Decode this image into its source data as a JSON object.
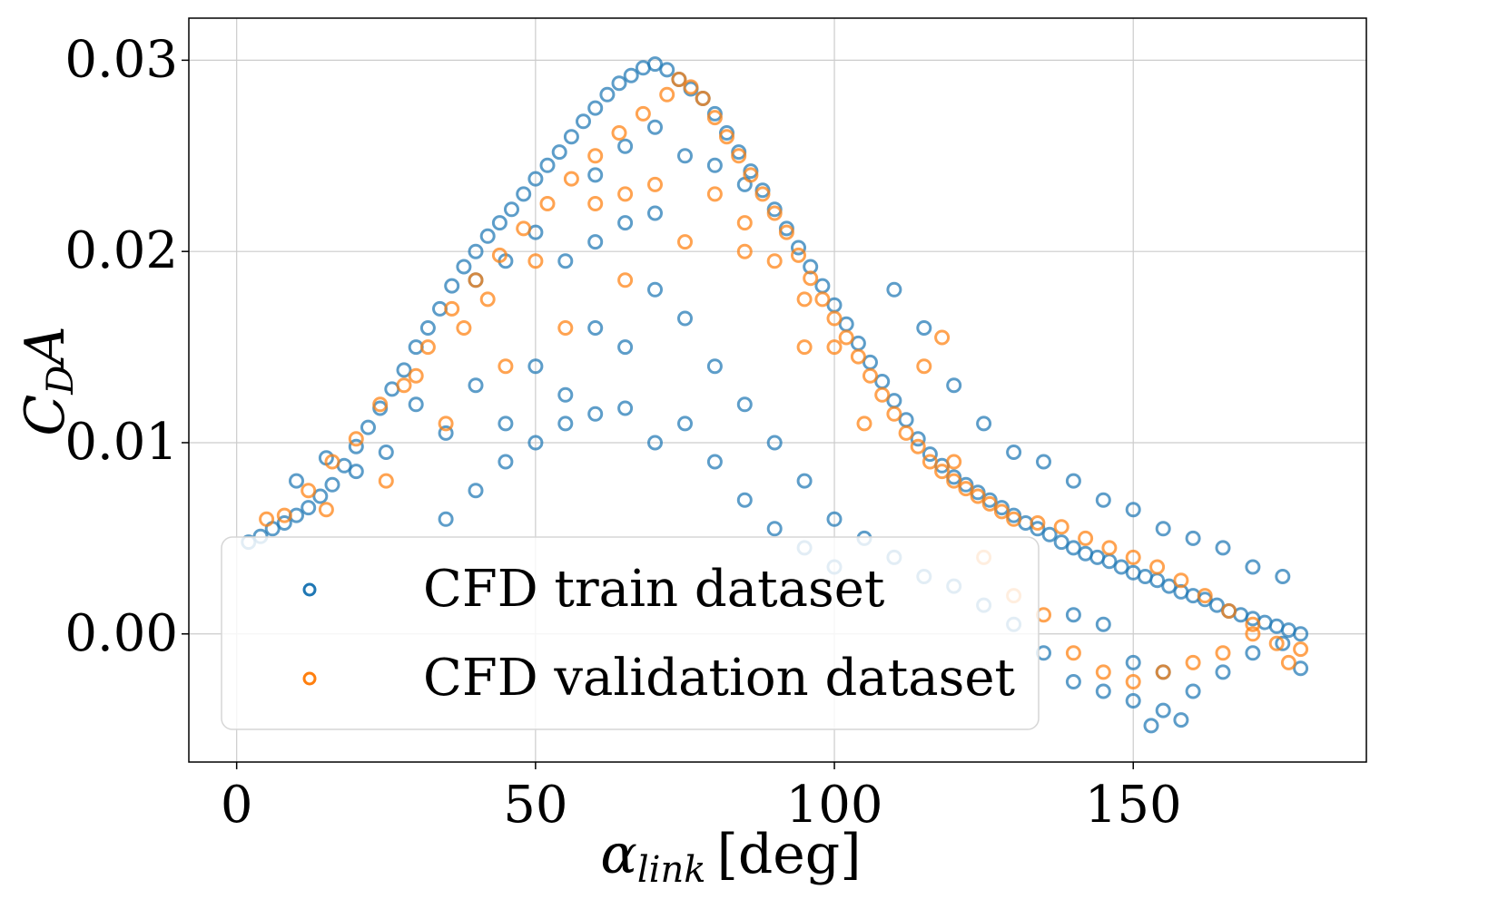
{
  "chart_data": {
    "type": "scatter",
    "xlabel": "αlink [deg]",
    "xlabel_main": "α",
    "xlabel_sub": "link",
    "xlabel_unit": "[deg]",
    "ylabel": "CDA",
    "ylabel_main": "C",
    "ylabel_sub": "D",
    "ylabel_tail": "A",
    "xlim": [
      -8,
      189
    ],
    "ylim": [
      -0.0067,
      0.0322
    ],
    "xticks": [
      0,
      50,
      100,
      150
    ],
    "xtick_labels": [
      "0",
      "50",
      "100",
      "150"
    ],
    "yticks": [
      0.0,
      0.01,
      0.02,
      0.03
    ],
    "ytick_labels": [
      "0.00",
      "0.01",
      "0.02",
      "0.03"
    ],
    "grid": true,
    "legend_position": "lower-left",
    "colors": {
      "train": "#1f77b4",
      "validation": "#ff7f0e"
    },
    "series": [
      {
        "name": "CFD train dataset",
        "color": "#1f77b4",
        "marker": "hollow-circle",
        "points": [
          [
            2,
            0.0048
          ],
          [
            4,
            0.0051
          ],
          [
            6,
            0.0055
          ],
          [
            8,
            0.0058
          ],
          [
            10,
            0.0062
          ],
          [
            12,
            0.0066
          ],
          [
            14,
            0.0072
          ],
          [
            16,
            0.0078
          ],
          [
            18,
            0.0088
          ],
          [
            20,
            0.0098
          ],
          [
            22,
            0.0108
          ],
          [
            24,
            0.0118
          ],
          [
            26,
            0.0128
          ],
          [
            28,
            0.0138
          ],
          [
            30,
            0.015
          ],
          [
            32,
            0.016
          ],
          [
            34,
            0.017
          ],
          [
            36,
            0.0182
          ],
          [
            38,
            0.0192
          ],
          [
            40,
            0.02
          ],
          [
            42,
            0.0208
          ],
          [
            44,
            0.0215
          ],
          [
            46,
            0.0222
          ],
          [
            48,
            0.023
          ],
          [
            50,
            0.0238
          ],
          [
            52,
            0.0245
          ],
          [
            54,
            0.0252
          ],
          [
            56,
            0.026
          ],
          [
            58,
            0.0268
          ],
          [
            60,
            0.0275
          ],
          [
            62,
            0.0282
          ],
          [
            64,
            0.0288
          ],
          [
            66,
            0.0292
          ],
          [
            68,
            0.0296
          ],
          [
            70,
            0.0298
          ],
          [
            72,
            0.0295
          ],
          [
            74,
            0.029
          ],
          [
            76,
            0.0285
          ],
          [
            78,
            0.028
          ],
          [
            80,
            0.0272
          ],
          [
            82,
            0.0262
          ],
          [
            84,
            0.0252
          ],
          [
            86,
            0.0242
          ],
          [
            88,
            0.0232
          ],
          [
            90,
            0.0222
          ],
          [
            92,
            0.0212
          ],
          [
            94,
            0.0202
          ],
          [
            96,
            0.0192
          ],
          [
            98,
            0.0182
          ],
          [
            100,
            0.0172
          ],
          [
            102,
            0.0162
          ],
          [
            104,
            0.0152
          ],
          [
            106,
            0.0142
          ],
          [
            108,
            0.0132
          ],
          [
            110,
            0.0122
          ],
          [
            112,
            0.0112
          ],
          [
            114,
            0.0102
          ],
          [
            116,
            0.0094
          ],
          [
            118,
            0.0088
          ],
          [
            120,
            0.0082
          ],
          [
            122,
            0.0078
          ],
          [
            124,
            0.0074
          ],
          [
            126,
            0.007
          ],
          [
            128,
            0.0066
          ],
          [
            130,
            0.0062
          ],
          [
            132,
            0.0058
          ],
          [
            134,
            0.0055
          ],
          [
            136,
            0.0052
          ],
          [
            138,
            0.0048
          ],
          [
            140,
            0.0045
          ],
          [
            142,
            0.0042
          ],
          [
            144,
            0.004
          ],
          [
            146,
            0.0038
          ],
          [
            148,
            0.0035
          ],
          [
            150,
            0.0032
          ],
          [
            152,
            0.003
          ],
          [
            154,
            0.0028
          ],
          [
            156,
            0.0025
          ],
          [
            158,
            0.0022
          ],
          [
            160,
            0.002
          ],
          [
            162,
            0.0018
          ],
          [
            164,
            0.0015
          ],
          [
            166,
            0.0012
          ],
          [
            168,
            0.001
          ],
          [
            170,
            0.0008
          ],
          [
            172,
            0.0006
          ],
          [
            174,
            0.0004
          ],
          [
            176,
            0.0002
          ],
          [
            178,
            0.0
          ],
          [
            10,
            0.008
          ],
          [
            15,
            0.0092
          ],
          [
            20,
            0.0085
          ],
          [
            25,
            0.0095
          ],
          [
            30,
            0.012
          ],
          [
            35,
            0.0105
          ],
          [
            40,
            0.013
          ],
          [
            45,
            0.011
          ],
          [
            50,
            0.014
          ],
          [
            55,
            0.0125
          ],
          [
            60,
            0.016
          ],
          [
            65,
            0.015
          ],
          [
            70,
            0.018
          ],
          [
            75,
            0.0165
          ],
          [
            80,
            0.014
          ],
          [
            85,
            0.012
          ],
          [
            90,
            0.01
          ],
          [
            95,
            0.008
          ],
          [
            100,
            0.006
          ],
          [
            105,
            0.005
          ],
          [
            110,
            0.004
          ],
          [
            115,
            0.003
          ],
          [
            120,
            0.0025
          ],
          [
            125,
            0.0015
          ],
          [
            130,
            0.0005
          ],
          [
            135,
            -0.001
          ],
          [
            140,
            -0.0025
          ],
          [
            145,
            -0.003
          ],
          [
            150,
            -0.0035
          ],
          [
            155,
            -0.004
          ],
          [
            160,
            -0.003
          ],
          [
            165,
            -0.002
          ],
          [
            170,
            -0.001
          ],
          [
            175,
            -0.0005
          ],
          [
            178,
            -0.0018
          ],
          [
            35,
            0.006
          ],
          [
            40,
            0.0075
          ],
          [
            45,
            0.009
          ],
          [
            50,
            0.01
          ],
          [
            55,
            0.011
          ],
          [
            60,
            0.0115
          ],
          [
            65,
            0.0118
          ],
          [
            70,
            0.01
          ],
          [
            75,
            0.011
          ],
          [
            80,
            0.009
          ],
          [
            85,
            0.007
          ],
          [
            90,
            0.0055
          ],
          [
            95,
            0.0045
          ],
          [
            100,
            0.0035
          ],
          [
            60,
            0.024
          ],
          [
            65,
            0.0255
          ],
          [
            70,
            0.0265
          ],
          [
            75,
            0.025
          ],
          [
            80,
            0.0245
          ],
          [
            85,
            0.0235
          ],
          [
            50,
            0.021
          ],
          [
            45,
            0.0195
          ],
          [
            40,
            0.0185
          ],
          [
            55,
            0.0195
          ],
          [
            60,
            0.0205
          ],
          [
            65,
            0.0215
          ],
          [
            70,
            0.022
          ],
          [
            110,
            0.018
          ],
          [
            115,
            0.016
          ],
          [
            120,
            0.013
          ],
          [
            125,
            0.011
          ],
          [
            130,
            0.0095
          ],
          [
            135,
            0.009
          ],
          [
            140,
            0.008
          ],
          [
            145,
            0.007
          ],
          [
            150,
            0.0065
          ],
          [
            155,
            0.0055
          ],
          [
            160,
            0.005
          ],
          [
            165,
            0.0045
          ],
          [
            170,
            0.0035
          ],
          [
            175,
            0.003
          ],
          [
            140,
            0.001
          ],
          [
            145,
            0.0005
          ],
          [
            150,
            -0.0015
          ],
          [
            155,
            -0.002
          ],
          [
            158,
            -0.0045
          ],
          [
            153,
            -0.0048
          ]
        ]
      },
      {
        "name": "CFD validation dataset",
        "color": "#ff7f0e",
        "marker": "hollow-circle",
        "points": [
          [
            5,
            0.006
          ],
          [
            8,
            0.0062
          ],
          [
            12,
            0.0075
          ],
          [
            16,
            0.009
          ],
          [
            20,
            0.0102
          ],
          [
            24,
            0.012
          ],
          [
            28,
            0.013
          ],
          [
            32,
            0.015
          ],
          [
            36,
            0.017
          ],
          [
            40,
            0.0185
          ],
          [
            44,
            0.0198
          ],
          [
            48,
            0.0212
          ],
          [
            52,
            0.0225
          ],
          [
            56,
            0.0238
          ],
          [
            60,
            0.025
          ],
          [
            64,
            0.0262
          ],
          [
            68,
            0.0272
          ],
          [
            72,
            0.0282
          ],
          [
            74,
            0.029
          ],
          [
            76,
            0.0286
          ],
          [
            78,
            0.028
          ],
          [
            80,
            0.027
          ],
          [
            82,
            0.026
          ],
          [
            84,
            0.025
          ],
          [
            86,
            0.024
          ],
          [
            88,
            0.023
          ],
          [
            90,
            0.022
          ],
          [
            92,
            0.021
          ],
          [
            94,
            0.0198
          ],
          [
            96,
            0.0186
          ],
          [
            98,
            0.0175
          ],
          [
            100,
            0.0165
          ],
          [
            102,
            0.0155
          ],
          [
            104,
            0.0145
          ],
          [
            106,
            0.0135
          ],
          [
            108,
            0.0125
          ],
          [
            110,
            0.0115
          ],
          [
            112,
            0.0105
          ],
          [
            114,
            0.0098
          ],
          [
            116,
            0.009
          ],
          [
            118,
            0.0085
          ],
          [
            120,
            0.008
          ],
          [
            122,
            0.0076
          ],
          [
            124,
            0.0072
          ],
          [
            126,
            0.0068
          ],
          [
            128,
            0.0064
          ],
          [
            130,
            0.006
          ],
          [
            134,
            0.0058
          ],
          [
            138,
            0.0056
          ],
          [
            142,
            0.005
          ],
          [
            146,
            0.0045
          ],
          [
            150,
            0.004
          ],
          [
            154,
            0.0035
          ],
          [
            158,
            0.0028
          ],
          [
            162,
            0.002
          ],
          [
            166,
            0.0012
          ],
          [
            170,
            0.0005
          ],
          [
            174,
            -0.0005
          ],
          [
            176,
            -0.0015
          ],
          [
            178,
            -0.0008
          ],
          [
            15,
            0.0065
          ],
          [
            25,
            0.008
          ],
          [
            35,
            0.011
          ],
          [
            45,
            0.014
          ],
          [
            55,
            0.016
          ],
          [
            65,
            0.0185
          ],
          [
            75,
            0.0205
          ],
          [
            85,
            0.02
          ],
          [
            95,
            0.015
          ],
          [
            105,
            0.011
          ],
          [
            115,
            0.014
          ],
          [
            118,
            0.0155
          ],
          [
            120,
            0.009
          ],
          [
            125,
            0.004
          ],
          [
            130,
            0.002
          ],
          [
            135,
            0.001
          ],
          [
            140,
            -0.001
          ],
          [
            145,
            -0.002
          ],
          [
            150,
            -0.0025
          ],
          [
            155,
            -0.002
          ],
          [
            160,
            -0.0015
          ],
          [
            165,
            -0.001
          ],
          [
            170,
            0.0
          ],
          [
            80,
            0.023
          ],
          [
            85,
            0.0215
          ],
          [
            90,
            0.0195
          ],
          [
            95,
            0.0175
          ],
          [
            100,
            0.015
          ],
          [
            60,
            0.0225
          ],
          [
            65,
            0.023
          ],
          [
            70,
            0.0235
          ],
          [
            50,
            0.0195
          ],
          [
            42,
            0.0175
          ],
          [
            38,
            0.016
          ],
          [
            30,
            0.0135
          ]
        ]
      }
    ]
  }
}
